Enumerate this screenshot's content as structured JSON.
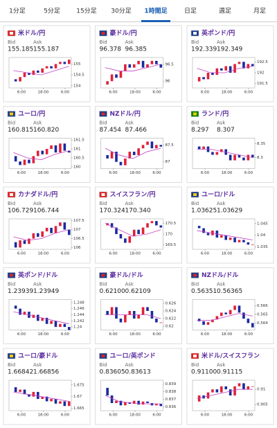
{
  "tabs": [
    "1分足",
    "5分足",
    "15分足",
    "30分足",
    "1時間足",
    "日足",
    "週足",
    "月足"
  ],
  "active_tab": 4,
  "bid_label": "Bid",
  "ask_label": "Ask",
  "xticks": [
    "6:00",
    "18:00",
    "6:00"
  ],
  "cards": [
    {
      "name": "米ドル/円",
      "bid": "155.185",
      "ask": "155.187",
      "ylim": [
        153.9,
        155.3
      ],
      "yticks": [
        155,
        154.5,
        154
      ],
      "closes": [
        154.3,
        154.2,
        154.4,
        154.6,
        154.5,
        154.7,
        154.6,
        154.8,
        154.9,
        154.8,
        155.0,
        155.1,
        155.0,
        155.2
      ],
      "ma": [
        154.7,
        154.6,
        154.5,
        154.7,
        154.9
      ]
    },
    {
      "name": "豪ドル/円",
      "bid": "96.378",
      "ask": "96.385",
      "ylim": [
        95.8,
        96.7
      ],
      "yticks": [
        96.5,
        96
      ],
      "closes": [
        95.9,
        96.0,
        96.2,
        96.1,
        96.3,
        96.5,
        96.4,
        96.5,
        96.6,
        96.4,
        96.5,
        96.6,
        96.5,
        96.4
      ],
      "ma": [
        96.4,
        96.3,
        96.3,
        96.4,
        96.5
      ]
    },
    {
      "name": "英ポンド/円",
      "bid": "192.339",
      "ask": "192.349",
      "ylim": [
        191.3,
        192.7
      ],
      "yticks": [
        192.5,
        192,
        191.5
      ],
      "closes": [
        191.6,
        191.8,
        191.7,
        192.0,
        191.9,
        192.2,
        192.1,
        192.3,
        192.0,
        192.4,
        192.5,
        192.2,
        192.4,
        192.3
      ],
      "ma": [
        192.2,
        192.0,
        192.0,
        192.2,
        192.3
      ]
    },
    {
      "name": "ユーロ/円",
      "bid": "160.815",
      "ask": "160.820",
      "ylim": [
        159.9,
        161.6
      ],
      "yticks": [
        161.5,
        161,
        160.5,
        160
      ],
      "closes": [
        160.6,
        160.3,
        160.1,
        160.4,
        160.2,
        160.6,
        160.9,
        160.7,
        161.0,
        161.2,
        160.8,
        161.3,
        160.9,
        160.8
      ],
      "ma": [
        160.8,
        160.5,
        160.4,
        160.7,
        160.9
      ]
    },
    {
      "name": "NZドル/円",
      "bid": "87.454",
      "ask": "87.466",
      "ylim": [
        86.8,
        87.7
      ],
      "yticks": [
        87.5,
        87
      ],
      "closes": [
        87.2,
        87.1,
        87.3,
        87.0,
        86.9,
        87.1,
        87.3,
        87.2,
        87.4,
        87.5,
        87.6,
        87.4,
        87.5,
        87.45
      ],
      "ma": [
        87.4,
        87.2,
        87.1,
        87.3,
        87.4
      ]
    },
    {
      "name": "ランド/円",
      "bid": "8.297",
      "ask": "8.307",
      "ylim": [
        8.26,
        8.37
      ],
      "yticks": [
        8.35,
        8.3
      ],
      "closes": [
        8.34,
        8.33,
        8.34,
        8.32,
        8.31,
        8.32,
        8.33,
        8.31,
        8.29,
        8.31,
        8.3,
        8.29,
        8.31,
        8.3
      ],
      "ma": [
        8.33,
        8.33,
        8.32,
        8.31,
        8.3
      ]
    },
    {
      "name": "カナダドル/円",
      "bid": "106.729",
      "ask": "106.744",
      "ylim": [
        105.9,
        107.6
      ],
      "yticks": [
        107.5,
        107,
        106.5,
        106
      ],
      "closes": [
        106.3,
        106.0,
        106.4,
        106.2,
        106.5,
        106.8,
        106.6,
        106.9,
        107.1,
        106.8,
        107.2,
        107.4,
        107.0,
        106.7
      ],
      "ma": [
        106.6,
        106.4,
        106.5,
        106.8,
        107.0
      ]
    },
    {
      "name": "スイスフラン/円",
      "bid": "170.324",
      "ask": "170.340",
      "ylim": [
        169.3,
        170.7
      ],
      "yticks": [
        170.5,
        170,
        169.5
      ],
      "closes": [
        170.4,
        170.5,
        170.3,
        170.0,
        169.8,
        169.6,
        169.9,
        170.2,
        170.0,
        170.3,
        170.5,
        170.6,
        170.4,
        170.3
      ],
      "ma": [
        170.5,
        170.2,
        169.9,
        170.0,
        170.2
      ]
    },
    {
      "name": "ユーロ/ドル",
      "bid": "1.03625",
      "ask": "1.03629",
      "ylim": [
        1.034,
        1.047
      ],
      "yticks": [
        1.045,
        1.04,
        1.035
      ],
      "closes": [
        1.044,
        1.043,
        1.041,
        1.04,
        1.042,
        1.039,
        1.04,
        1.038,
        1.039,
        1.037,
        1.038,
        1.037,
        1.036,
        1.036
      ],
      "ma": [
        1.042,
        1.041,
        1.04,
        1.039,
        1.038
      ]
    },
    {
      "name": "英ポンド/ドル",
      "bid": "1.23939",
      "ask": "1.23949",
      "ylim": [
        1.239,
        1.249
      ],
      "yticks": [
        1.248,
        1.246,
        1.244,
        1.242,
        1.24
      ],
      "closes": [
        1.247,
        1.246,
        1.244,
        1.245,
        1.243,
        1.244,
        1.242,
        1.243,
        1.241,
        1.242,
        1.24,
        1.241,
        1.24,
        1.239
      ],
      "ma": [
        1.245,
        1.244,
        1.243,
        1.242,
        1.241
      ]
    },
    {
      "name": "豪ドル/ドル",
      "bid": "0.62100",
      "ask": "0.62109",
      "ylim": [
        0.619,
        0.627
      ],
      "yticks": [
        0.626,
        0.624,
        0.622,
        0.62
      ],
      "closes": [
        0.624,
        0.623,
        0.625,
        0.622,
        0.621,
        0.623,
        0.624,
        0.622,
        0.623,
        0.625,
        0.624,
        0.622,
        0.621,
        0.621
      ],
      "ma": [
        0.623,
        0.623,
        0.623,
        0.623,
        0.622
      ]
    },
    {
      "name": "NZドル/ドル",
      "bid": "0.56351",
      "ask": "0.56365",
      "ylim": [
        0.5632,
        0.5667
      ],
      "yticks": [
        0.566,
        0.565,
        0.564
      ],
      "closes": [
        0.5645,
        0.5642,
        0.5638,
        0.5641,
        0.5644,
        0.5648,
        0.5652,
        0.565,
        0.5655,
        0.566,
        0.5652,
        0.5645,
        0.564,
        0.5635
      ],
      "ma": [
        0.5643,
        0.5643,
        0.5647,
        0.5651,
        0.5648
      ]
    },
    {
      "name": "ユーロ/豪ドル",
      "bid": "1.66842",
      "ask": "1.66856",
      "ylim": [
        1.664,
        1.677
      ],
      "yticks": [
        1.675,
        1.67,
        1.665
      ],
      "closes": [
        1.674,
        1.672,
        1.673,
        1.671,
        1.67,
        1.672,
        1.669,
        1.67,
        1.668,
        1.669,
        1.667,
        1.668,
        1.666,
        1.668
      ],
      "ma": [
        1.672,
        1.671,
        1.67,
        1.669,
        1.668
      ]
    },
    {
      "name": "ユーロ/英ポンド",
      "bid": "0.83605",
      "ask": "0.83613",
      "ylim": [
        0.8355,
        0.8395
      ],
      "yticks": [
        0.839,
        0.838,
        0.837,
        0.836
      ],
      "closes": [
        0.8385,
        0.8375,
        0.8365,
        0.8368,
        0.8362,
        0.8366,
        0.8364,
        0.8368,
        0.8363,
        0.8367,
        0.8365,
        0.8362,
        0.8364,
        0.8361
      ],
      "ma": [
        0.8375,
        0.8367,
        0.8365,
        0.8364,
        0.8364
      ]
    },
    {
      "name": "米ドル/スイスフラン",
      "bid": "0.91100",
      "ask": "0.91115",
      "ylim": [
        0.903,
        0.913
      ],
      "yticks": [
        0.91,
        0.905
      ],
      "closes": [
        0.906,
        0.908,
        0.907,
        0.909,
        0.91,
        0.909,
        0.911,
        0.91,
        0.908,
        0.911,
        0.912,
        0.91,
        0.911,
        0.911
      ],
      "ma": [
        0.907,
        0.908,
        0.909,
        0.91,
        0.91
      ]
    }
  ]
}
